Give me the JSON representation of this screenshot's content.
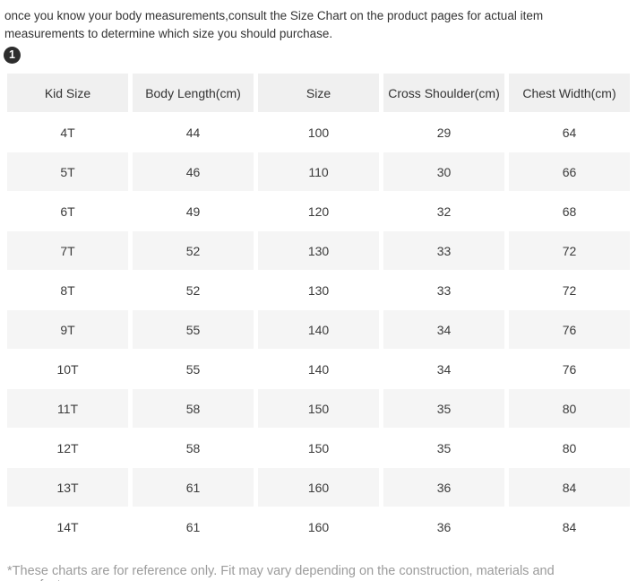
{
  "intro": {
    "text": "once you know your body measurements,consult the Size Chart on the product pages for actual item measurements to determine which size you should purchase."
  },
  "step_badge": {
    "label": "1"
  },
  "table": {
    "columns": [
      "Kid Size",
      "Body Length(cm)",
      "Size",
      "Cross Shoulder(cm)",
      "Chest Width(cm)"
    ],
    "rows": [
      [
        "4T",
        "44",
        "100",
        "29",
        "64"
      ],
      [
        "5T",
        "46",
        "110",
        "30",
        "66"
      ],
      [
        "6T",
        "49",
        "120",
        "32",
        "68"
      ],
      [
        "7T",
        "52",
        "130",
        "33",
        "72"
      ],
      [
        "8T",
        "52",
        "130",
        "33",
        "72"
      ],
      [
        "9T",
        "55",
        "140",
        "34",
        "76"
      ],
      [
        "10T",
        "55",
        "140",
        "34",
        "76"
      ],
      [
        "11T",
        "58",
        "150",
        "35",
        "80"
      ],
      [
        "12T",
        "58",
        "150",
        "35",
        "80"
      ],
      [
        "13T",
        "61",
        "160",
        "36",
        "84"
      ],
      [
        "14T",
        "61",
        "160",
        "36",
        "84"
      ]
    ]
  },
  "footer": {
    "disclaimer": "*These charts are for reference only. Fit may vary depending on the construction, materials and manufacturer."
  },
  "colors": {
    "header_bg": "#f0f0f0",
    "row_alt_bg": "#f5f5f5",
    "text": "#3b3b3b",
    "muted_text": "#9b9b9b",
    "badge_bg": "#2d2d2d"
  }
}
